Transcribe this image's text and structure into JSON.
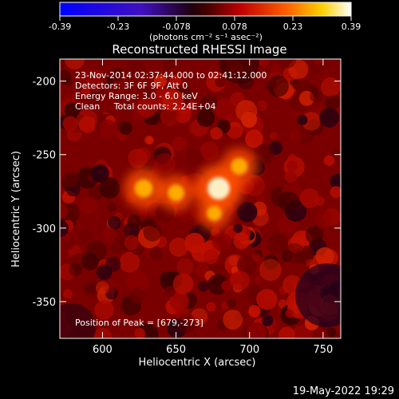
{
  "colorbar": {
    "ticks": [
      "-0.39",
      "-0.23",
      "-0.078",
      "0.078",
      "0.23",
      "0.39"
    ],
    "unit_label": "(photons cm⁻² s⁻¹ asec⁻²)"
  },
  "chart_data": {
    "type": "heatmap",
    "title": "Reconstructed RHESSI Image",
    "xlabel": "Heliocentric X (arcsec)",
    "ylabel": "Heliocentric Y (arcsec)",
    "xlim": [
      571,
      762
    ],
    "ylim": [
      -375,
      -185
    ],
    "x_ticks": [
      600,
      650,
      700,
      750
    ],
    "y_ticks": [
      -200,
      -250,
      -300,
      -350
    ],
    "color_range": [
      -0.39,
      0.39
    ],
    "colormap": "rainbow-to-hot",
    "info_lines": [
      "23-Nov-2014 02:37:44.000 to 02:41:12.000",
      "Detectors: 3F 6F 9F, Att 0",
      "Energy Range: 3.0 - 6.0 keV",
      "Clean     Total counts: 2.24E+04"
    ],
    "peak_label": "Position of Peak = [679,-273]",
    "sources": [
      {
        "x": 679,
        "y": -273,
        "intensity": 0.39
      },
      {
        "x": 628,
        "y": -273,
        "intensity": 0.26
      },
      {
        "x": 650,
        "y": -276,
        "intensity": 0.21
      },
      {
        "x": 693,
        "y": -258,
        "intensity": 0.22
      },
      {
        "x": 676,
        "y": -290,
        "intensity": 0.16
      }
    ]
  },
  "footer": {
    "timestamp": "19-May-2022 19:29"
  }
}
